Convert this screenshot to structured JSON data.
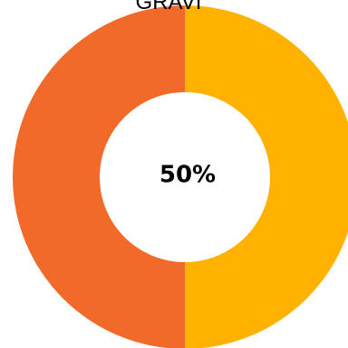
{
  "chart_data": {
    "type": "pie",
    "title": "GRAVI",
    "center_label": "50%",
    "donut": true,
    "slices": [
      {
        "label": "",
        "value": 50,
        "color": "#FFB300"
      },
      {
        "label": "",
        "value": 50,
        "color": "#F26A2A"
      }
    ],
    "legend": "none"
  }
}
